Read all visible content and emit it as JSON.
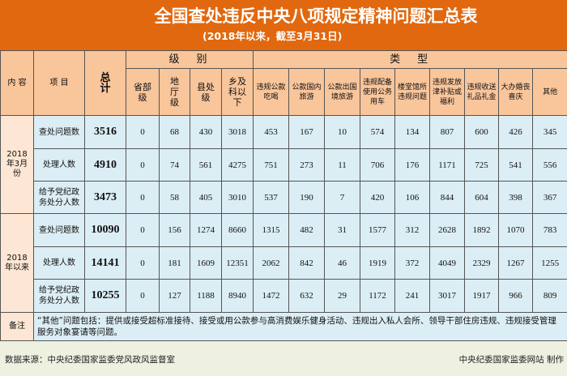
{
  "title": "全国查处违反中央八项规定精神问题汇总表",
  "subtitle": "(2018年以来，截至3月31日)",
  "headers": {
    "content": "内 容",
    "item": "项 目",
    "total": "总计",
    "level": "级　别",
    "type": "类　型",
    "levels": [
      "省部级",
      "地厅级",
      "县处级",
      "乡及科以下"
    ],
    "types": [
      "违规公款吃喝",
      "公款国内旅游",
      "公款出国境旅游",
      "违规配备使用公务用车",
      "楼堂馆所违规问题",
      "违规发放津补贴或福利",
      "违规收送礼品礼金",
      "大办婚丧喜庆",
      "其他"
    ]
  },
  "groups": [
    {
      "label": "2018年3月份",
      "rows": [
        {
          "item": "查处问题数",
          "total": "3516",
          "values": [
            "0",
            "68",
            "430",
            "3018",
            "453",
            "167",
            "10",
            "574",
            "134",
            "807",
            "600",
            "426",
            "345"
          ]
        },
        {
          "item": "处理人数",
          "total": "4910",
          "values": [
            "0",
            "74",
            "561",
            "4275",
            "751",
            "273",
            "11",
            "706",
            "176",
            "1171",
            "725",
            "541",
            "556"
          ]
        },
        {
          "item": "给予党纪政务处分人数",
          "total": "3473",
          "values": [
            "0",
            "58",
            "405",
            "3010",
            "537",
            "190",
            "7",
            "420",
            "106",
            "844",
            "604",
            "398",
            "367"
          ]
        }
      ]
    },
    {
      "label": "2018年以来",
      "rows": [
        {
          "item": "查处问题数",
          "total": "10090",
          "values": [
            "0",
            "156",
            "1274",
            "8660",
            "1315",
            "482",
            "31",
            "1577",
            "312",
            "2628",
            "1892",
            "1070",
            "783"
          ]
        },
        {
          "item": "处理人数",
          "total": "14141",
          "values": [
            "0",
            "181",
            "1609",
            "12351",
            "2062",
            "842",
            "46",
            "1919",
            "372",
            "4049",
            "2329",
            "1267",
            "1255"
          ]
        },
        {
          "item": "给予党纪政务处分人数",
          "total": "10255",
          "values": [
            "0",
            "127",
            "1188",
            "8940",
            "1472",
            "632",
            "29",
            "1172",
            "241",
            "3017",
            "1917",
            "966",
            "809"
          ]
        }
      ]
    }
  ],
  "note": {
    "label": "备注",
    "text": "“其他”问题包括：提供或接受超标准接待、接受或用公款参与高消费娱乐健身活动、违规出入私人会所、领导干部住房违规、违规接受管理服务对象宴请等问题。"
  },
  "footer": {
    "source": "数据来源：中央纪委国家监委党风政风监督室",
    "maker": "中央纪委国家监委网站 制作"
  },
  "colors": {
    "title_bg": "#e1680f",
    "header_bg": "#f9c59a",
    "cell_bg": "#dceef5",
    "footer_bg": "#eef0e0"
  }
}
